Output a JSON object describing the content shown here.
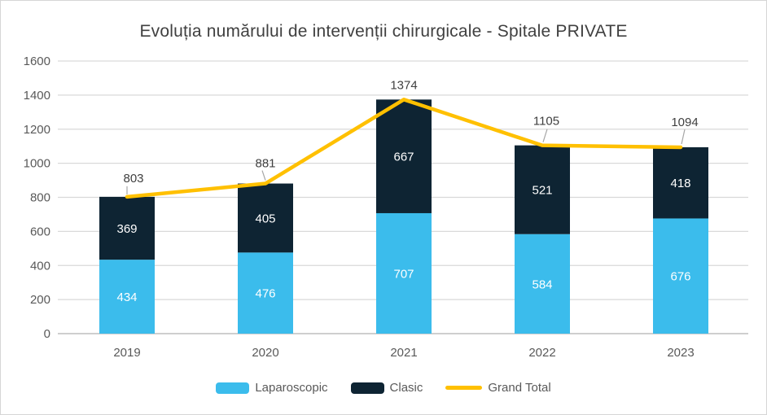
{
  "chart_data": {
    "type": "bar",
    "stacked": true,
    "title": "Evoluția numărului de intervenții chirurgicale - Spitale PRIVATE",
    "categories": [
      "2019",
      "2020",
      "2021",
      "2022",
      "2023"
    ],
    "series": [
      {
        "name": "Laparoscopic",
        "color": "#3bbcec",
        "values": [
          434,
          476,
          707,
          584,
          676
        ]
      },
      {
        "name": "Clasic",
        "color": "#0e2433",
        "values": [
          369,
          405,
          667,
          521,
          418
        ]
      }
    ],
    "line_series": {
      "name": "Grand Total",
      "color": "#ffc000",
      "values": [
        803,
        881,
        1374,
        1105,
        1094
      ]
    },
    "xlabel": "",
    "ylabel": "",
    "ylim": [
      0,
      1600
    ],
    "ytick_step": 200,
    "yticks": [
      0,
      200,
      400,
      600,
      800,
      1000,
      1200,
      1400,
      1600
    ],
    "grid": true,
    "legend_position": "bottom",
    "colors": {
      "grid": "#d9d9d9",
      "baseline": "#bfbfbf",
      "axis_text": "#595959",
      "title_text": "#404040",
      "bar_label_text": "#ffffff",
      "total_label_text": "#404040",
      "leader_line": "#a6a6a6",
      "background": "#ffffff"
    }
  }
}
